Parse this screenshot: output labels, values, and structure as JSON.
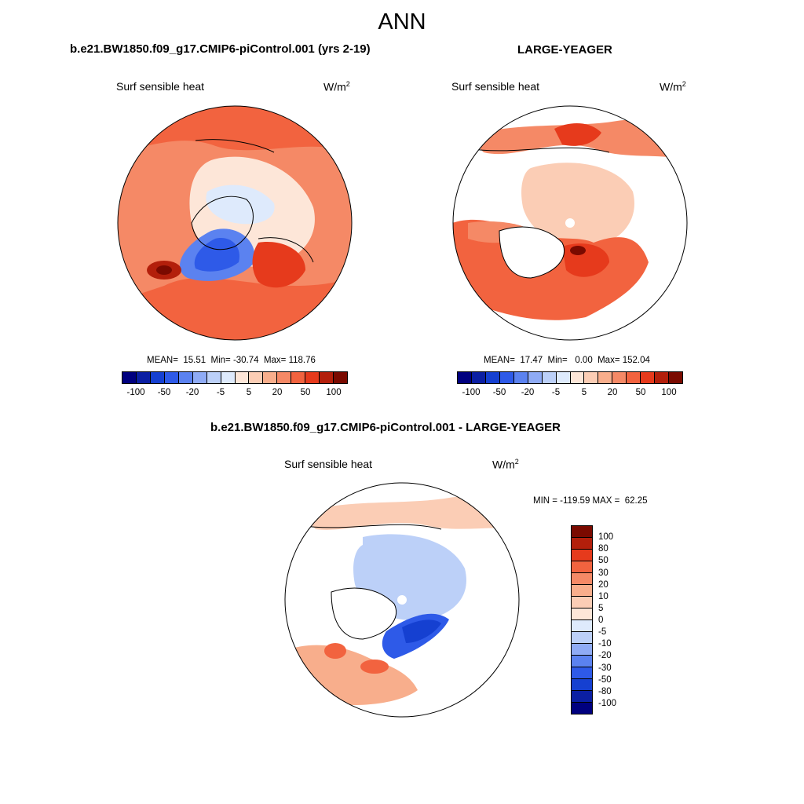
{
  "figure": {
    "title": "ANN"
  },
  "panels": [
    {
      "case_title": "b.e21.BW1850.f09_g17.CMIP6-piControl.001 (yrs 2-19)",
      "variable": "Surf sensible heat",
      "units": "W/m",
      "units_exp": "2",
      "stats": "MEAN=  15.51  Min= -30.74  Max= 118.76",
      "field_description": "mostly positive (orange/red), blue negative over Greenland and central Arctic"
    },
    {
      "case_title": "LARGE-YEAGER",
      "variable": "Surf sensible heat",
      "units": "W/m",
      "units_exp": "2",
      "stats": "MEAN=  17.47  Min=   0.00  Max= 152.04",
      "field_description": "positive over oceans, masked (white) over land"
    },
    {
      "case_title": "b.e21.BW1850.f09_g17.CMIP6-piControl.001 - LARGE-YEAGER",
      "variable": "Surf sensible heat",
      "units": "W/m",
      "units_exp": "2",
      "stats": "MIN = -119.59 MAX =  62.25",
      "field_description": "difference field, blue over central Arctic and Barents Sea"
    }
  ],
  "abs_colorbar": {
    "tick_labels": [
      "-100",
      "-50",
      "-20",
      "-5",
      "5",
      "20",
      "50",
      "100"
    ],
    "colors": [
      "#00007f",
      "#0b1fa3",
      "#1540d1",
      "#2e5ae8",
      "#5b82f0",
      "#8fabf5",
      "#bcd0f8",
      "#deeafc",
      "#fde6d8",
      "#fbcdb5",
      "#f8ae8c",
      "#f58966",
      "#f2633f",
      "#e63a1c",
      "#b31f0b",
      "#7a0a00"
    ]
  },
  "diff_colorbar": {
    "tick_labels": [
      "100",
      "80",
      "50",
      "30",
      "20",
      "10",
      "5",
      "0",
      "-5",
      "-10",
      "-20",
      "-30",
      "-50",
      "-80",
      "-100"
    ],
    "colors": [
      "#7a0a00",
      "#b31f0b",
      "#e63a1c",
      "#f2633f",
      "#f58966",
      "#f8ae8c",
      "#fbcdb5",
      "#fde6d8",
      "#deeafc",
      "#bcd0f8",
      "#8fabf5",
      "#5b82f0",
      "#2e5ae8",
      "#1540d1",
      "#0b1fa3",
      "#00007f"
    ]
  }
}
